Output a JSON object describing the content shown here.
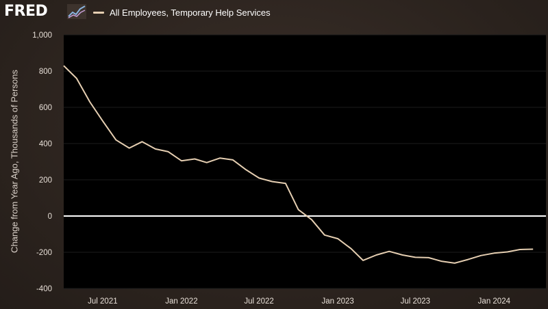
{
  "header": {
    "logo_text": "FRED",
    "logo_icon": "line-chart-logo-icon",
    "series_label": "All Employees, Temporary Help Services"
  },
  "colors": {
    "background": "#2e2520",
    "plot_background": "#000000",
    "series_line": "#e6cfb2",
    "zero_line": "#ffffff",
    "grid": "#1c1c1c"
  },
  "chart_data": {
    "type": "line",
    "title": "",
    "xlabel": "",
    "ylabel": "Change from Year Ago, Thousands of Persons",
    "ylim": [
      -400,
      1000
    ],
    "xlim": [
      "2021-04-01",
      "2024-05-01"
    ],
    "grid": "horizontal",
    "zero_line": true,
    "y_ticks": [
      {
        "value": 1000,
        "label": "1,000"
      },
      {
        "value": 800,
        "label": "800"
      },
      {
        "value": 600,
        "label": "600"
      },
      {
        "value": 400,
        "label": "400"
      },
      {
        "value": 200,
        "label": "200"
      },
      {
        "value": 0,
        "label": "0"
      },
      {
        "value": -200,
        "label": "-200"
      },
      {
        "value": -400,
        "label": "-400"
      }
    ],
    "x_ticks": [
      {
        "date": "2021-07-01",
        "label": "Jul 2021"
      },
      {
        "date": "2022-01-01",
        "label": "Jan 2022"
      },
      {
        "date": "2022-07-01",
        "label": "Jul 2022"
      },
      {
        "date": "2023-01-01",
        "label": "Jan 2023"
      },
      {
        "date": "2023-07-01",
        "label": "Jul 2023"
      },
      {
        "date": "2024-01-01",
        "label": "Jan 2024"
      }
    ],
    "series": [
      {
        "name": "All Employees, Temporary Help Services",
        "x": [
          "2021-04-01",
          "2021-05-01",
          "2021-06-01",
          "2021-07-01",
          "2021-08-01",
          "2021-09-01",
          "2021-10-01",
          "2021-11-01",
          "2021-12-01",
          "2022-01-01",
          "2022-02-01",
          "2022-03-01",
          "2022-04-01",
          "2022-05-01",
          "2022-06-01",
          "2022-07-01",
          "2022-08-01",
          "2022-09-01",
          "2022-10-01",
          "2022-11-01",
          "2022-12-01",
          "2023-01-01",
          "2023-02-01",
          "2023-03-01",
          "2023-04-01",
          "2023-05-01",
          "2023-06-01",
          "2023-07-01",
          "2023-08-01",
          "2023-09-01",
          "2023-10-01",
          "2023-11-01",
          "2023-12-01",
          "2024-01-01",
          "2024-02-01",
          "2024-03-01",
          "2024-04-01"
        ],
        "values": [
          830,
          760,
          630,
          525,
          420,
          375,
          410,
          370,
          355,
          305,
          315,
          295,
          320,
          310,
          255,
          210,
          190,
          180,
          35,
          -20,
          -105,
          -125,
          -180,
          -245,
          -215,
          -195,
          -215,
          -228,
          -230,
          -250,
          -260,
          -240,
          -218,
          -205,
          -198,
          -185,
          -183
        ]
      }
    ]
  }
}
